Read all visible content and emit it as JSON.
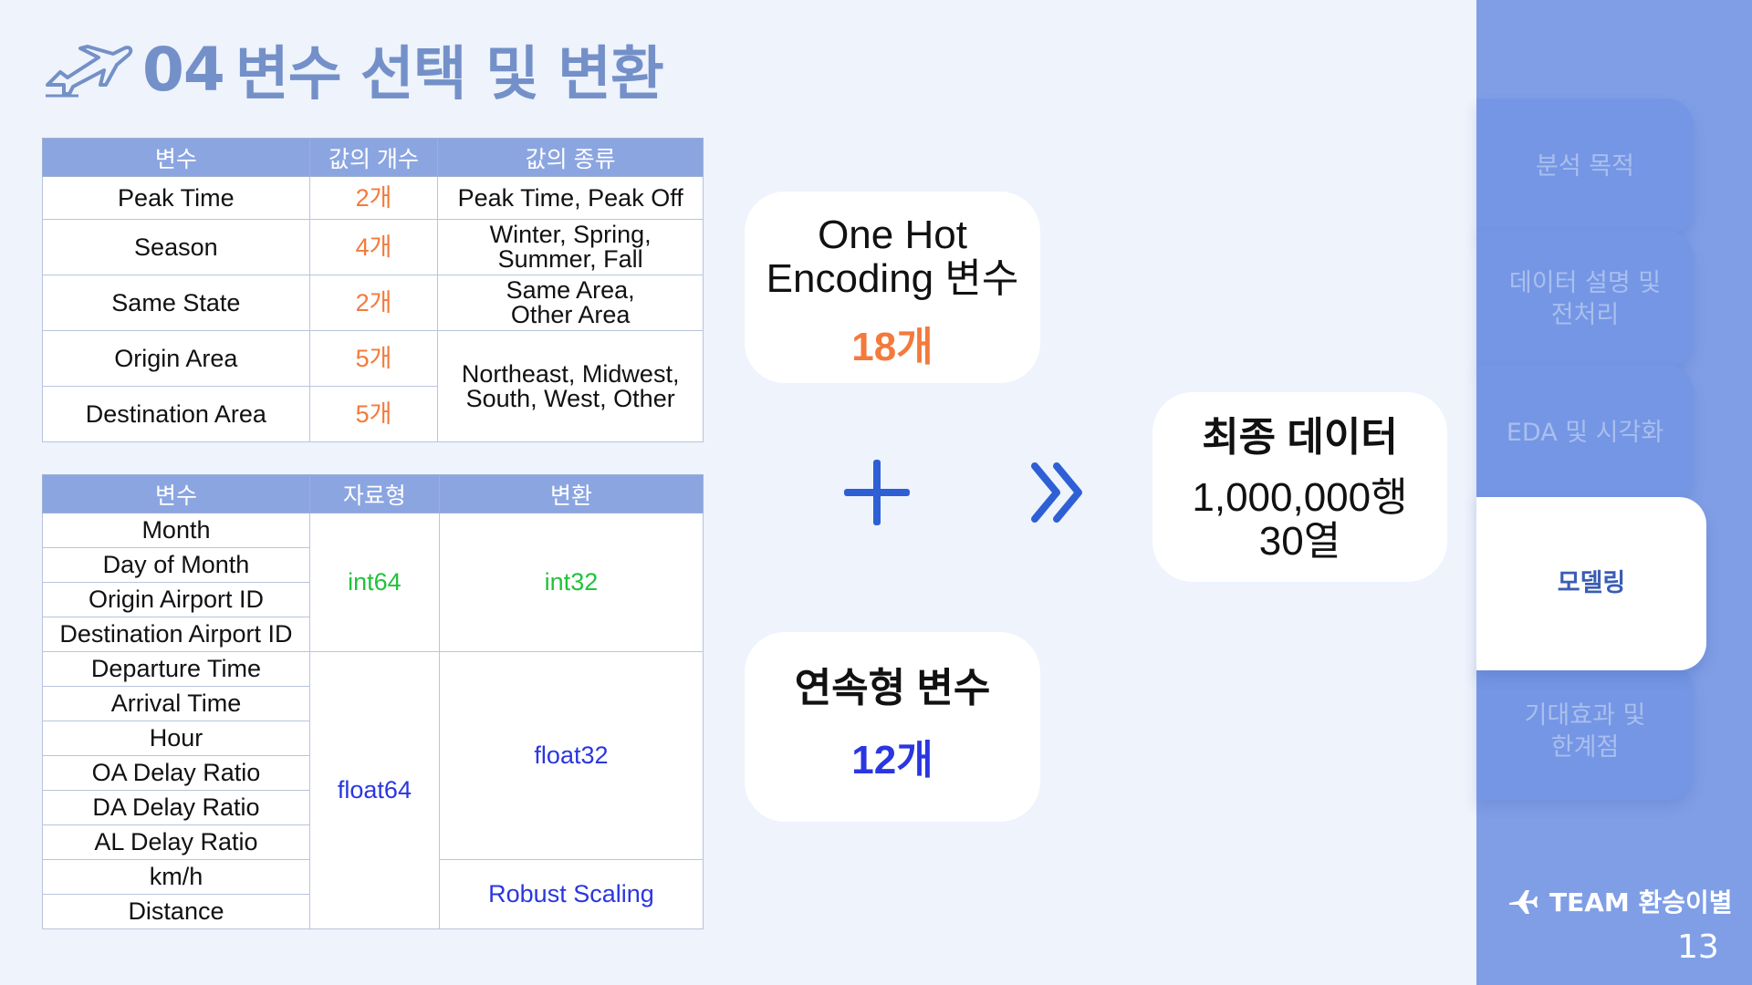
{
  "title": {
    "number": "04",
    "text": "변수 선택 및 변환",
    "icon": "airplane-icon"
  },
  "table1": {
    "headers": [
      "변수",
      "값의 개수",
      "값의 종류"
    ],
    "rows": [
      {
        "var": "Peak Time",
        "count": "2개",
        "values": "Peak Time, Peak Off"
      },
      {
        "var": "Season",
        "count": "4개",
        "values": "Winter, Spring, Summer, Fall"
      },
      {
        "var": "Same State",
        "count": "2개",
        "values": "Same Area, Other Area"
      },
      {
        "var": "Origin Area",
        "count": "5개",
        "values": "Northeast, Midwest, South, West, Other"
      },
      {
        "var": "Destination Area",
        "count": "5개"
      }
    ]
  },
  "table2": {
    "headers": [
      "변수",
      "자료형",
      "변환"
    ],
    "vars": [
      "Month",
      "Day of Month",
      "Origin Airport ID",
      "Destination Airport ID",
      "Departure Time",
      "Arrival Time",
      "Hour",
      "OA Delay Ratio",
      "DA Delay Ratio",
      "AL Delay Ratio",
      "km/h",
      "Distance"
    ],
    "group1": {
      "dtype": "int64",
      "conversion": "int32"
    },
    "group2": {
      "dtype": "float64",
      "conversion": "float32",
      "scaling": "Robust Scaling"
    }
  },
  "cards": {
    "onehot": {
      "line1": "One Hot",
      "line2": "Encoding 변수",
      "count": "18개"
    },
    "continuous": {
      "label": "연속형 변수",
      "count": "12개"
    },
    "final": {
      "label": "최종 데이터",
      "rows": "1,000,000행",
      "cols": "30열"
    }
  },
  "operators": {
    "plus": "plus-icon",
    "arrow": "double-chevron-right-icon"
  },
  "sidebar": {
    "items": [
      {
        "label": "분석 목적",
        "active": false
      },
      {
        "label": "데이터 설명 및 전처리",
        "active": false
      },
      {
        "label": "EDA 및 시각화",
        "active": false
      },
      {
        "label": "모델링",
        "active": true
      },
      {
        "label": "기대효과 및 한계점",
        "active": false
      }
    ],
    "team": "TEAM 환승이별",
    "page": "13"
  },
  "colors": {
    "accent_title": "#7490c8",
    "table_header": "#8ba5e1",
    "count_orange": "#f47a3c",
    "int_green": "#22c23b",
    "float_blue": "#2a36e0",
    "sidebar": "#7f9ee6"
  }
}
